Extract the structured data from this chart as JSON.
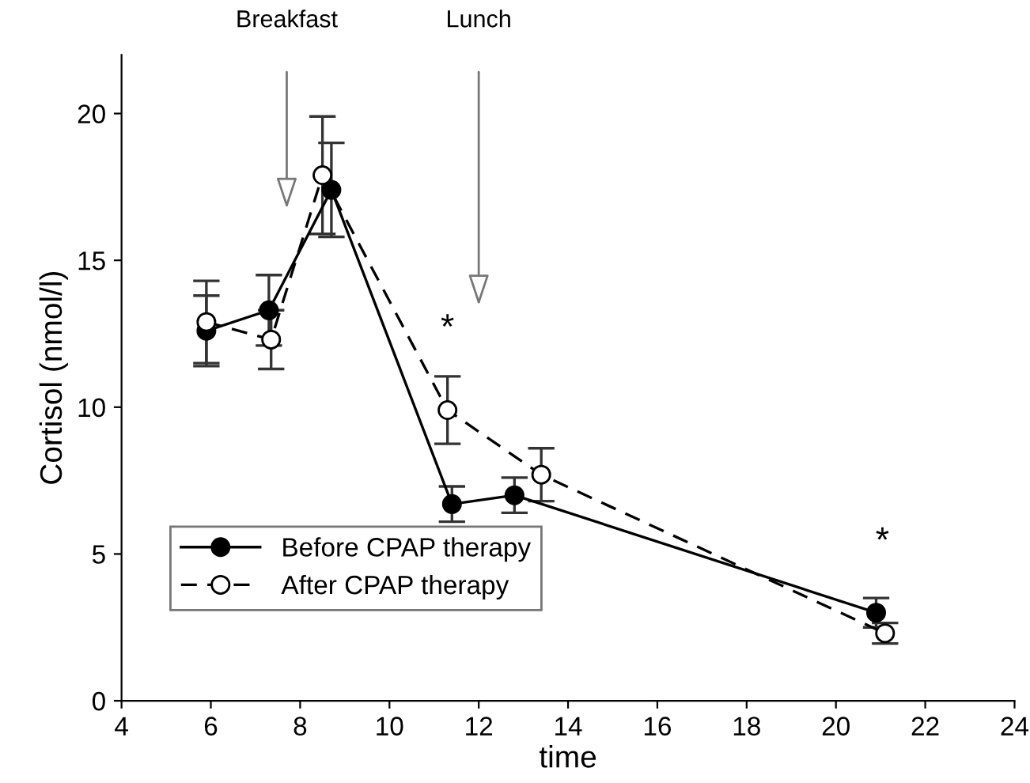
{
  "chart_data": {
    "type": "line",
    "xlabel": "time",
    "ylabel": "Cortisol (nmol/l)",
    "xlim": [
      4,
      24
    ],
    "xticks": [
      4,
      6,
      8,
      10,
      12,
      14,
      16,
      18,
      20,
      22,
      24
    ],
    "ylim": [
      0,
      22
    ],
    "yticks": [
      0,
      5,
      10,
      15,
      20
    ],
    "grid": false,
    "legend": "bottom left",
    "marker": "circle",
    "series": [
      {
        "name": "Before CPAP therapy",
        "color": "#000000",
        "line_style": "solid",
        "x": [
          5.9,
          7.3,
          8.7,
          11.4,
          12.8,
          20.9
        ],
        "values": [
          12.6,
          13.3,
          17.4,
          6.7,
          7.0,
          3.0
        ],
        "errors": [
          1.2,
          1.2,
          1.6,
          0.6,
          0.6,
          0.5
        ]
      },
      {
        "name": "After CPAP therapy",
        "color": "#000000",
        "line_style": "dashed",
        "x": [
          5.9,
          7.35,
          8.5,
          11.3,
          13.4,
          21.1
        ],
        "values": [
          12.9,
          12.3,
          17.9,
          9.9,
          7.7,
          2.3
        ],
        "errors": [
          1.4,
          1.0,
          2.0,
          1.15,
          0.9,
          0.35
        ]
      }
    ],
    "annotations": [
      "Breakfast",
      "Lunch",
      "*",
      "*"
    ]
  }
}
